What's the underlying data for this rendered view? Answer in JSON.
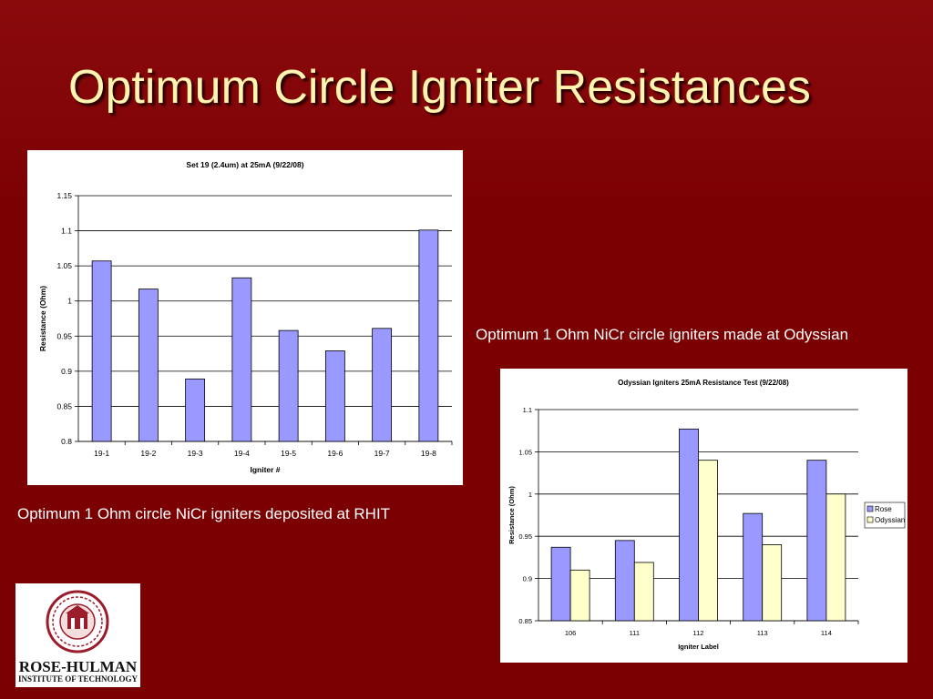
{
  "slide": {
    "title": "Optimum Circle Igniter Resistances",
    "caption_left": "Optimum 1 Ohm circle NiCr igniters deposited at RHIT",
    "caption_right": "Optimum 1 Ohm NiCr circle igniters made at Odyssian"
  },
  "logo": {
    "name": "ROSE-HULMAN",
    "subtitle": "INSTITUTE OF TECHNOLOGY"
  },
  "colors": {
    "background": "#7a0002",
    "title": "#fff4b0",
    "rose_bar": "#9999ff",
    "odyssian_bar": "#ffffcc"
  },
  "chart_data": [
    {
      "type": "bar",
      "title": "Set 19 (2.4um) at 25mA (9/22/08)",
      "xlabel": "Igniter #",
      "ylabel": "Resistance (Ohm)",
      "ylim": [
        0.8,
        1.15
      ],
      "yticks": [
        "0.8",
        "0.85",
        "0.9",
        "0.95",
        "1",
        "1.05",
        "1.1",
        "1.15"
      ],
      "grid": true,
      "legend": "none",
      "categories": [
        "19-1",
        "19-2",
        "19-3",
        "19-4",
        "19-5",
        "19-6",
        "19-7",
        "19-8"
      ],
      "values": [
        1.057,
        1.017,
        0.889,
        1.033,
        0.958,
        0.929,
        0.961,
        1.101
      ]
    },
    {
      "type": "bar",
      "title": "Odyssian Igniters 25mA Resistance Test (9/22/08)",
      "xlabel": "Igniter Label",
      "ylabel": "Resistance (Ohm)",
      "ylim": [
        0.85,
        1.1
      ],
      "yticks": [
        "0.85",
        "0.9",
        "0.95",
        "1",
        "1.05",
        "1.1"
      ],
      "grid": true,
      "legend": "right",
      "categories": [
        "106",
        "111",
        "112",
        "113",
        "114"
      ],
      "series": [
        {
          "name": "Rose",
          "values": [
            0.937,
            0.945,
            1.077,
            0.977,
            1.04
          ]
        },
        {
          "name": "Odyssian",
          "values": [
            0.91,
            0.919,
            1.04,
            0.94,
            1.0
          ]
        }
      ]
    }
  ]
}
